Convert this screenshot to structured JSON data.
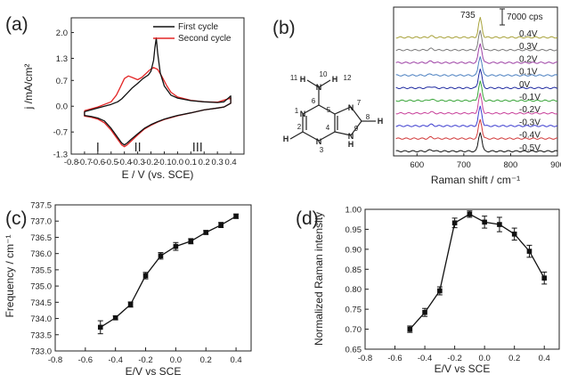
{
  "chart_data": [
    {
      "id": "a",
      "panel_label": "(a)",
      "type": "line",
      "xlabel": "E / V (vs. SCE)",
      "ylabel": "j /mA/cm²",
      "xlim": [
        -0.8,
        0.5
      ],
      "ylim": [
        -1.3,
        2.4
      ],
      "xticks": [
        "-0.8",
        "-0.7",
        "-0.6",
        "-0.5",
        "-0.4",
        "-0.3",
        "-0.2",
        "-0.1",
        "0.0",
        "0.1",
        "0.2",
        "0.3",
        "0.4"
      ],
      "yticks": [
        "-1.3",
        "-0.7",
        "0.0",
        "0.7",
        "1.3",
        "2.0"
      ],
      "legend": "top-right",
      "legend_entries": [
        "First cycle",
        "Second cycle"
      ],
      "colors": {
        "first": "#111111",
        "second": "#e32626"
      },
      "markers": [
        {
          "x": -0.6,
          "label": "I"
        },
        {
          "x": -0.3,
          "label": "II"
        },
        {
          "x": 0.15,
          "label": "III"
        }
      ],
      "series": [
        {
          "name": "First cycle",
          "color": "#111111",
          "x": [
            -0.7,
            -0.6,
            -0.5,
            -0.45,
            -0.42,
            -0.38,
            -0.34,
            -0.3,
            -0.26,
            -0.22,
            -0.2,
            -0.18,
            -0.17,
            -0.16,
            -0.15,
            -0.13,
            -0.1,
            -0.05,
            0.0,
            0.1,
            0.2,
            0.3,
            0.35,
            0.4,
            0.4,
            0.35,
            0.3,
            0.2,
            0.1,
            0.0,
            -0.05,
            -0.1,
            -0.15,
            -0.2,
            -0.25,
            -0.3,
            -0.35,
            -0.38,
            -0.4,
            -0.42,
            -0.45,
            -0.5,
            -0.55,
            -0.6,
            -0.65,
            -0.7,
            -0.7
          ],
          "y": [
            -0.15,
            -0.05,
            0.05,
            0.12,
            0.2,
            0.35,
            0.5,
            0.62,
            0.75,
            0.85,
            0.95,
            1.25,
            1.6,
            1.85,
            1.45,
            0.9,
            0.55,
            0.3,
            0.22,
            0.15,
            0.12,
            0.1,
            0.12,
            0.28,
            0.08,
            -0.02,
            -0.05,
            -0.1,
            -0.18,
            -0.25,
            -0.3,
            -0.35,
            -0.42,
            -0.5,
            -0.6,
            -0.75,
            -0.9,
            -1.0,
            -1.05,
            -1.0,
            -0.85,
            -0.6,
            -0.4,
            -0.32,
            -0.28,
            -0.25,
            -0.15
          ]
        },
        {
          "name": "Second cycle",
          "color": "#e32626",
          "x": [
            -0.7,
            -0.6,
            -0.5,
            -0.46,
            -0.43,
            -0.4,
            -0.37,
            -0.34,
            -0.3,
            -0.27,
            -0.24,
            -0.21,
            -0.18,
            -0.15,
            -0.12,
            -0.08,
            -0.05,
            0.0,
            0.1,
            0.2,
            0.3,
            0.4,
            0.4,
            0.35,
            0.3,
            0.2,
            0.1,
            0.0,
            -0.05,
            -0.1,
            -0.15,
            -0.2,
            -0.25,
            -0.3,
            -0.35,
            -0.38,
            -0.4,
            -0.42,
            -0.45,
            -0.5,
            -0.55,
            -0.6,
            -0.65,
            -0.7,
            -0.7
          ],
          "y": [
            -0.12,
            -0.02,
            0.12,
            0.3,
            0.52,
            0.75,
            0.82,
            0.78,
            0.72,
            0.78,
            0.88,
            0.98,
            1.05,
            1.0,
            0.82,
            0.55,
            0.38,
            0.25,
            0.16,
            0.12,
            0.11,
            0.22,
            0.08,
            -0.02,
            -0.05,
            -0.1,
            -0.18,
            -0.26,
            -0.31,
            -0.36,
            -0.43,
            -0.52,
            -0.62,
            -0.78,
            -0.95,
            -1.05,
            -1.1,
            -1.05,
            -0.9,
            -0.65,
            -0.45,
            -0.35,
            -0.3,
            -0.27,
            -0.12
          ]
        }
      ]
    },
    {
      "id": "b",
      "panel_label": "(b)",
      "type": "line",
      "xlabel": "Raman shift / cm⁻¹",
      "xlim": [
        550,
        900
      ],
      "xticks": [
        "600",
        "700",
        "800",
        "900"
      ],
      "peak_label": "735",
      "scale_bar_label": "7000 cps",
      "series": [
        {
          "name": "0.4V",
          "color": "#a8a23a"
        },
        {
          "name": "0.3V",
          "color": "#7b7a7a"
        },
        {
          "name": "0.2V",
          "color": "#9c3fa4"
        },
        {
          "name": "0.1V",
          "color": "#4a7fc0"
        },
        {
          "name": "0V",
          "color": "#1f2aa0"
        },
        {
          "name": "-0.1V",
          "color": "#3aa53a"
        },
        {
          "name": "-0.2V",
          "color": "#c8409a"
        },
        {
          "name": "-0.3V",
          "color": "#3c3ccf"
        },
        {
          "name": "-0.4V",
          "color": "#d23a3a"
        },
        {
          "name": "-0.5V",
          "color": "#111111"
        }
      ]
    },
    {
      "id": "c",
      "panel_label": "(c)",
      "type": "line",
      "xlabel": "E/V vs SCE",
      "ylabel": "Frequency / cm⁻¹",
      "xlim": [
        -0.8,
        0.5
      ],
      "ylim": [
        733.0,
        737.5
      ],
      "xticks": [
        "-0.8",
        "-0.6",
        "-0.4",
        "-0.2",
        "0.0",
        "0.2",
        "0.4"
      ],
      "yticks": [
        "733.0",
        "733.5",
        "734.0",
        "734.5",
        "735.0",
        "735.5",
        "736.0",
        "736.5",
        "737.0",
        "737.5"
      ],
      "x": [
        -0.5,
        -0.4,
        -0.3,
        -0.2,
        -0.1,
        0.0,
        0.1,
        0.2,
        0.3,
        0.4
      ],
      "y": [
        733.73,
        734.02,
        734.43,
        735.32,
        735.93,
        736.22,
        736.38,
        736.65,
        736.88,
        737.15
      ],
      "err": [
        0.2,
        0.06,
        0.08,
        0.1,
        0.1,
        0.12,
        0.08,
        0.06,
        0.08,
        0.07
      ]
    },
    {
      "id": "d",
      "panel_label": "(d)",
      "type": "line",
      "xlabel": "E/V vs SCE",
      "ylabel": "Normalized Raman intensity",
      "xlim": [
        -0.8,
        0.5
      ],
      "ylim": [
        0.65,
        1.0
      ],
      "xticks": [
        "-0.8",
        "-0.6",
        "-0.4",
        "-0.2",
        "0.0",
        "0.2",
        "0.4"
      ],
      "yticks": [
        "0.65",
        "0.70",
        "0.75",
        "0.80",
        "0.85",
        "0.90",
        "0.95",
        "1.00"
      ],
      "x": [
        -0.5,
        -0.4,
        -0.3,
        -0.2,
        -0.1,
        0.0,
        0.1,
        0.2,
        0.3,
        0.4
      ],
      "y": [
        0.7,
        0.742,
        0.796,
        0.966,
        0.988,
        0.968,
        0.962,
        0.938,
        0.895,
        0.828
      ],
      "err": [
        0.008,
        0.01,
        0.01,
        0.012,
        0.008,
        0.015,
        0.018,
        0.015,
        0.015,
        0.015
      ]
    }
  ],
  "molecule": {
    "atoms": [
      "N",
      "N",
      "N",
      "N",
      "N",
      "N",
      "H",
      "H",
      "H",
      "H"
    ],
    "numbers": [
      "1",
      "2",
      "3",
      "4",
      "5",
      "6",
      "7",
      "8",
      "9",
      "10",
      "11",
      "12"
    ]
  }
}
